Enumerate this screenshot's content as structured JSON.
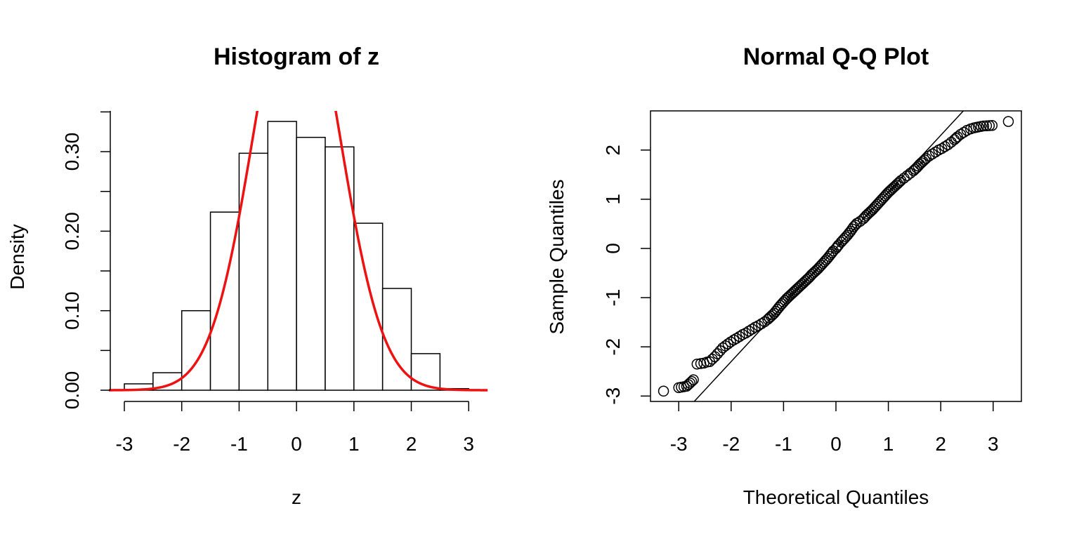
{
  "chart_data": [
    {
      "type": "bar",
      "title": "Histogram of z",
      "xlabel": "z",
      "ylabel": "Density",
      "xlim": [
        -3.3,
        3.3
      ],
      "ylim": [
        0,
        0.35
      ],
      "xticks": [
        "-3",
        "-2",
        "-1",
        "0",
        "1",
        "2",
        "3"
      ],
      "yticks": [
        "0.00",
        "0.10",
        "0.20",
        "0.30"
      ],
      "bins": [
        {
          "x0": -3.0,
          "x1": -2.5,
          "value": 0.008
        },
        {
          "x0": -2.5,
          "x1": -2.0,
          "value": 0.022
        },
        {
          "x0": -2.0,
          "x1": -1.5,
          "value": 0.1
        },
        {
          "x0": -1.5,
          "x1": -1.0,
          "value": 0.224
        },
        {
          "x0": -1.0,
          "x1": -0.5,
          "value": 0.298
        },
        {
          "x0": -0.5,
          "x1": 0.0,
          "value": 0.338
        },
        {
          "x0": 0.0,
          "x1": 0.5,
          "value": 0.318
        },
        {
          "x0": 0.5,
          "x1": 1.0,
          "value": 0.306
        },
        {
          "x0": 1.0,
          "x1": 1.5,
          "value": 0.21
        },
        {
          "x0": 1.5,
          "x1": 2.0,
          "value": 0.128
        },
        {
          "x0": 2.0,
          "x1": 2.5,
          "value": 0.046
        },
        {
          "x0": 2.5,
          "x1": 3.0,
          "value": 0.002
        }
      ],
      "curve": {
        "type": "normal",
        "mean": 0,
        "sd": 0.75,
        "color": "#ee1111"
      },
      "grid": false
    },
    {
      "type": "scatter",
      "title": "Normal Q-Q Plot",
      "xlabel": "Theoretical Quantiles",
      "ylabel": "Sample Quantiles",
      "xlim": [
        -3.55,
        3.55
      ],
      "ylim": [
        -3.1,
        2.8
      ],
      "xticks": [
        "-3",
        "-2",
        "-1",
        "0",
        "1",
        "2",
        "3"
      ],
      "yticks": [
        "-3",
        "-2",
        "-1",
        "0",
        "1",
        "2"
      ],
      "points": [
        [
          -3.29,
          -2.9
        ],
        [
          -3.0,
          -2.83
        ],
        [
          -2.85,
          -2.8
        ],
        [
          -2.72,
          -2.67
        ],
        [
          -2.65,
          -2.35
        ],
        [
          -2.58,
          -2.34
        ],
        [
          -2.52,
          -2.33
        ],
        [
          -2.46,
          -2.31
        ],
        [
          -2.41,
          -2.3
        ],
        [
          -2.36,
          -2.25
        ],
        [
          -2.31,
          -2.2
        ],
        [
          -2.26,
          -2.14
        ],
        [
          -2.21,
          -2.08
        ],
        [
          -2.16,
          -2.02
        ],
        [
          -2.11,
          -1.98
        ],
        [
          -2.06,
          -1.94
        ],
        [
          -2.01,
          -1.9
        ],
        [
          -1.95,
          -1.86
        ],
        [
          -1.9,
          -1.83
        ],
        [
          -1.84,
          -1.79
        ],
        [
          -1.78,
          -1.75
        ],
        [
          -1.72,
          -1.72
        ],
        [
          -1.66,
          -1.68
        ],
        [
          -1.6,
          -1.64
        ],
        [
          -1.54,
          -1.6
        ],
        [
          -1.48,
          -1.57
        ],
        [
          -1.42,
          -1.53
        ],
        [
          -1.36,
          -1.49
        ],
        [
          -1.3,
          -1.44
        ],
        [
          -1.24,
          -1.38
        ],
        [
          -1.18,
          -1.32
        ],
        [
          -1.12,
          -1.24
        ],
        [
          -1.06,
          -1.16
        ],
        [
          -1.0,
          -1.09
        ],
        [
          -0.94,
          -1.02
        ],
        [
          -0.88,
          -0.96
        ],
        [
          -0.82,
          -0.9
        ],
        [
          -0.76,
          -0.84
        ],
        [
          -0.7,
          -0.78
        ],
        [
          -0.64,
          -0.72
        ],
        [
          -0.58,
          -0.66
        ],
        [
          -0.52,
          -0.6
        ],
        [
          -0.46,
          -0.53
        ],
        [
          -0.4,
          -0.47
        ],
        [
          -0.34,
          -0.41
        ],
        [
          -0.28,
          -0.34
        ],
        [
          -0.22,
          -0.27
        ],
        [
          -0.16,
          -0.2
        ],
        [
          -0.1,
          -0.12
        ],
        [
          -0.05,
          -0.05
        ],
        [
          0.0,
          0.0
        ],
        [
          0.05,
          0.07
        ],
        [
          0.1,
          0.13
        ],
        [
          0.16,
          0.2
        ],
        [
          0.22,
          0.27
        ],
        [
          0.28,
          0.35
        ],
        [
          0.34,
          0.44
        ],
        [
          0.4,
          0.51
        ],
        [
          0.46,
          0.55
        ],
        [
          0.52,
          0.6
        ],
        [
          0.58,
          0.67
        ],
        [
          0.64,
          0.73
        ],
        [
          0.7,
          0.79
        ],
        [
          0.76,
          0.86
        ],
        [
          0.82,
          0.93
        ],
        [
          0.88,
          1.0
        ],
        [
          0.94,
          1.07
        ],
        [
          1.0,
          1.14
        ],
        [
          1.06,
          1.2
        ],
        [
          1.12,
          1.26
        ],
        [
          1.18,
          1.32
        ],
        [
          1.24,
          1.38
        ],
        [
          1.3,
          1.43
        ],
        [
          1.36,
          1.48
        ],
        [
          1.42,
          1.53
        ],
        [
          1.48,
          1.58
        ],
        [
          1.54,
          1.64
        ],
        [
          1.6,
          1.71
        ],
        [
          1.66,
          1.77
        ],
        [
          1.72,
          1.83
        ],
        [
          1.78,
          1.88
        ],
        [
          1.84,
          1.92
        ],
        [
          1.9,
          1.96
        ],
        [
          1.96,
          2.0
        ],
        [
          2.02,
          2.03
        ],
        [
          2.08,
          2.07
        ],
        [
          2.14,
          2.11
        ],
        [
          2.2,
          2.16
        ],
        [
          2.26,
          2.21
        ],
        [
          2.32,
          2.27
        ],
        [
          2.38,
          2.32
        ],
        [
          2.44,
          2.36
        ],
        [
          2.5,
          2.4
        ],
        [
          2.57,
          2.43
        ],
        [
          2.63,
          2.45
        ],
        [
          2.72,
          2.47
        ],
        [
          2.82,
          2.49
        ],
        [
          2.98,
          2.5
        ],
        [
          3.29,
          2.58
        ]
      ],
      "line": {
        "intercept": 0.0,
        "slope": 1.15
      },
      "grid": false
    }
  ]
}
